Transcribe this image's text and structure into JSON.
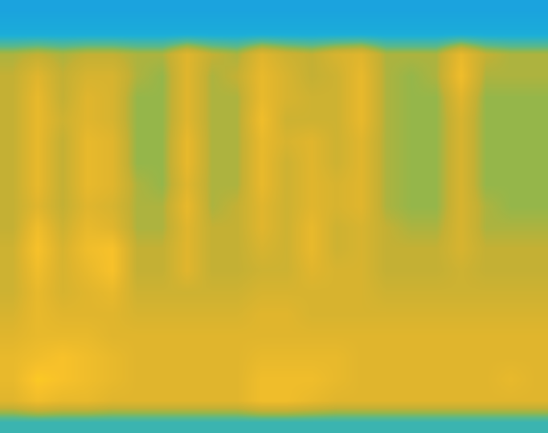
{
  "chart_data": {
    "type": "heatmap",
    "tick_labels": false,
    "zlim": [
      0,
      10
    ],
    "cells": [
      [
        0.5,
        0.5,
        0.5,
        0.5,
        0.5,
        0.5,
        0.5,
        0.5,
        0.5,
        0.5,
        0.5,
        0.5,
        0.5,
        0.5,
        0.5,
        0.5,
        0.5,
        0.5,
        0.5,
        0.5,
        0.5,
        0.5
      ],
      [
        1.5,
        1.5,
        1.5,
        1.5,
        1.5,
        1.5,
        1.5,
        1.5,
        1.5,
        1.5,
        1.5,
        1.5,
        1.5,
        1.5,
        1.5,
        1.5,
        1.5,
        1.5,
        1.5,
        1.5,
        1.5,
        1.5
      ],
      [
        5.5,
        6,
        5.5,
        6,
        6,
        5.5,
        5.5,
        7.5,
        6,
        5.5,
        7.5,
        6.5,
        6,
        7,
        7.5,
        5.5,
        5.5,
        5.5,
        8,
        6,
        5.5,
        5.5
      ],
      [
        6,
        7.5,
        6,
        7,
        7,
        5.5,
        5,
        7.5,
        5.5,
        6,
        8,
        7,
        6,
        6.5,
        8,
        5.5,
        5,
        5.5,
        8.5,
        5.5,
        5.5,
        5.5
      ],
      [
        6,
        8,
        6,
        7.5,
        7,
        5,
        5,
        7.5,
        5.5,
        5.5,
        8,
        7,
        6.5,
        6.5,
        8,
        5.5,
        5,
        5,
        7.5,
        5,
        5,
        5
      ],
      [
        6,
        8,
        6.5,
        7.5,
        7,
        5,
        5,
        7.5,
        5.5,
        5.5,
        8.5,
        6.5,
        6.5,
        6.5,
        8,
        5.5,
        5,
        5,
        7,
        5,
        5,
        5
      ],
      [
        6,
        8,
        6,
        8,
        7.5,
        5,
        5,
        8,
        5.5,
        5.5,
        8,
        7,
        7.5,
        6.5,
        7.5,
        5.5,
        5,
        5,
        7,
        5,
        5,
        5
      ],
      [
        6,
        8,
        6,
        8,
        7.5,
        5,
        5,
        8,
        5.5,
        5.5,
        8,
        6.5,
        7.5,
        6.5,
        7.5,
        5.5,
        5,
        5,
        7,
        5,
        5,
        5
      ],
      [
        6,
        8,
        6,
        8,
        7.5,
        5.5,
        5,
        7.5,
        5.5,
        5.5,
        8,
        6.5,
        7.5,
        7,
        7.5,
        5.5,
        5,
        5,
        7,
        5,
        5,
        5
      ],
      [
        6,
        7.5,
        6,
        7.5,
        7,
        5.5,
        5.5,
        8,
        5.5,
        6,
        7.5,
        6.5,
        7.5,
        7,
        7.5,
        5.5,
        5,
        5,
        7,
        5.5,
        5,
        5
      ],
      [
        6,
        8.5,
        6.5,
        8,
        7.5,
        5.5,
        5.5,
        7.5,
        6,
        6,
        7.5,
        6.5,
        8,
        6.5,
        7,
        6,
        5.5,
        5.5,
        7,
        5.5,
        5.5,
        5.5
      ],
      [
        6.5,
        9,
        7,
        8.5,
        9,
        6,
        6,
        7.5,
        6,
        6,
        7,
        6.5,
        8,
        6.5,
        7,
        6,
        6,
        6,
        7,
        6,
        6,
        6
      ],
      [
        6.5,
        8.5,
        7,
        8,
        9,
        6,
        6,
        7.5,
        6,
        6,
        6.5,
        6.5,
        7.5,
        7,
        7,
        6,
        6,
        6,
        6.5,
        6,
        6,
        6
      ],
      [
        6.5,
        8,
        7,
        7.5,
        8,
        6.5,
        6.5,
        6.5,
        6.5,
        6.5,
        7,
        7,
        7,
        7,
        7,
        6.5,
        6.5,
        6.5,
        6.5,
        6.5,
        6.5,
        6.5
      ],
      [
        7,
        8,
        7.5,
        7.5,
        7.5,
        7,
        7,
        7,
        7,
        7,
        7.5,
        7.5,
        7,
        7,
        7,
        7,
        7,
        7,
        7,
        7,
        7,
        7
      ],
      [
        7.5,
        8,
        8,
        8,
        7.5,
        7.5,
        7.5,
        7.5,
        7.5,
        7.5,
        7.5,
        7.5,
        7.5,
        7.5,
        7.5,
        7.5,
        7.5,
        7.5,
        7.5,
        7.5,
        7.5,
        7.5
      ],
      [
        8,
        8.5,
        9,
        8.5,
        8,
        7.5,
        7.5,
        7.5,
        7.5,
        7.5,
        8,
        8,
        8,
        8,
        7.5,
        7.5,
        7.5,
        7.5,
        7.5,
        7.5,
        7.5,
        7.5
      ],
      [
        8,
        9.5,
        9,
        8.5,
        8,
        7.5,
        7.5,
        7.5,
        7.5,
        7.5,
        8.5,
        8.5,
        8.5,
        8,
        7.5,
        7.5,
        7.5,
        7.5,
        7.5,
        7.5,
        8,
        7.5
      ],
      [
        7.5,
        8.5,
        8,
        8,
        7.5,
        7.5,
        7.5,
        7.5,
        7.5,
        7.5,
        8.5,
        8.5,
        8,
        7.5,
        7.5,
        7.5,
        7.5,
        7.5,
        7.5,
        7.5,
        7.5,
        7.5
      ],
      [
        3,
        3,
        3,
        3,
        3,
        3,
        3,
        3,
        3,
        3,
        3,
        3,
        3,
        3,
        3,
        3,
        3,
        3,
        3,
        3,
        3,
        3
      ]
    ]
  }
}
